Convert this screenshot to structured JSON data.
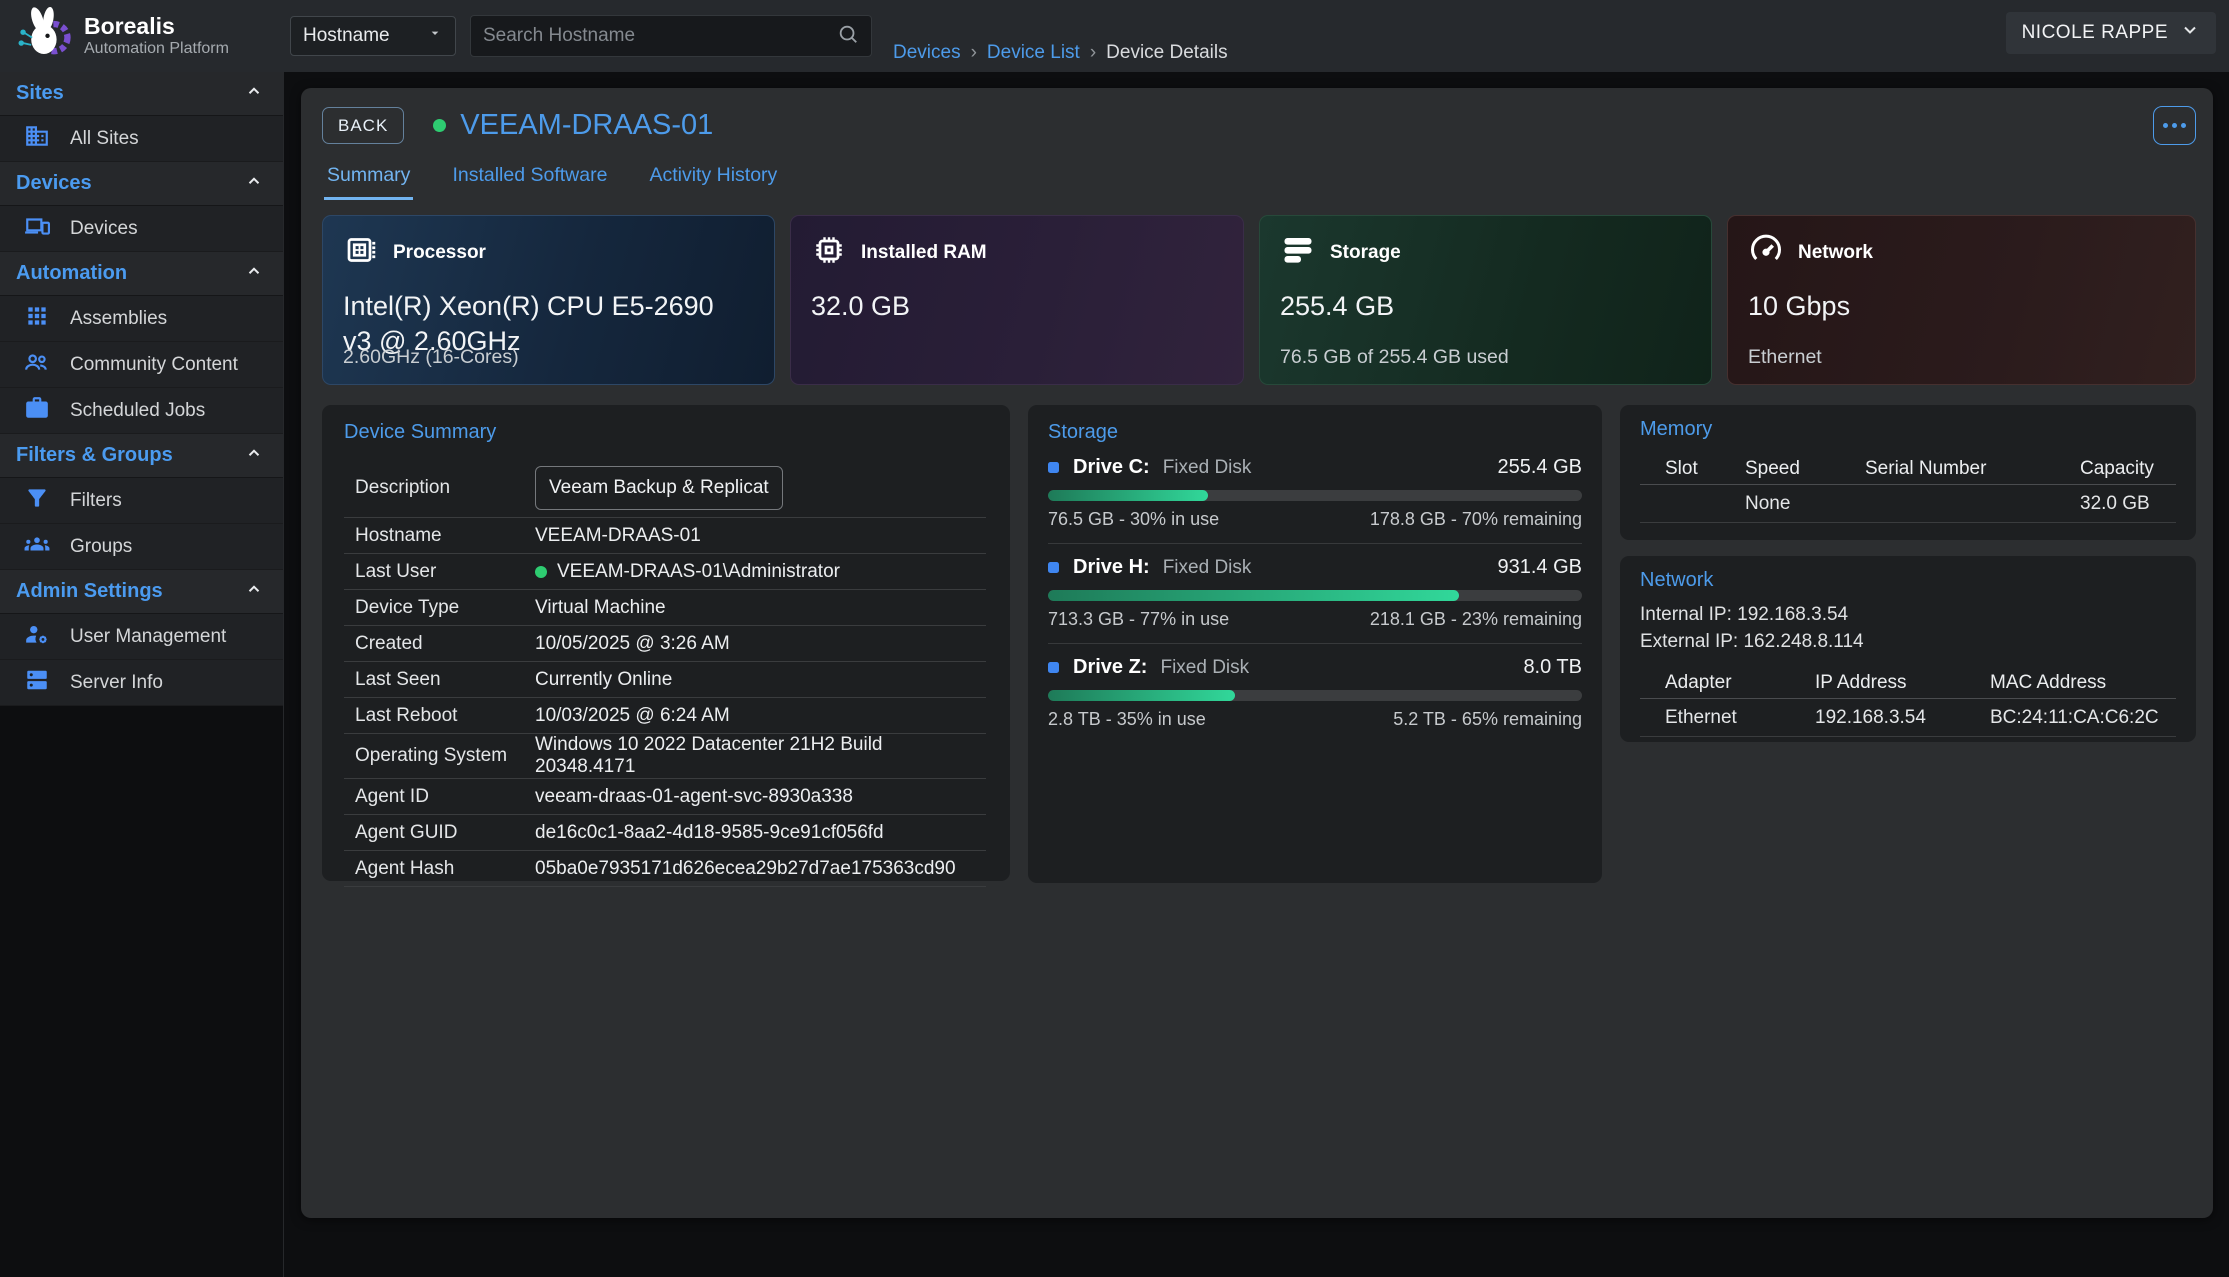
{
  "brand": {
    "name": "Borealis",
    "subtitle": "Automation Platform"
  },
  "topbar": {
    "filter_dropdown": {
      "value": "Hostname"
    },
    "search": {
      "placeholder": "Search Hostname"
    },
    "breadcrumb": {
      "separator": "›",
      "items": [
        {
          "label": "Devices"
        },
        {
          "label": "Device List"
        },
        {
          "label": "Device Details"
        }
      ]
    },
    "user_menu": {
      "label": "NICOLE RAPPE"
    }
  },
  "sidebar": {
    "sections": [
      {
        "label": "Sites",
        "items": [
          {
            "label": "All Sites",
            "icon": "building-icon"
          }
        ]
      },
      {
        "label": "Devices",
        "items": [
          {
            "label": "Devices",
            "icon": "devices-icon"
          }
        ]
      },
      {
        "label": "Automation",
        "items": [
          {
            "label": "Assemblies",
            "icon": "grid-icon"
          },
          {
            "label": "Community Content",
            "icon": "people-icon"
          },
          {
            "label": "Scheduled Jobs",
            "icon": "briefcase-icon"
          }
        ]
      },
      {
        "label": "Filters & Groups",
        "items": [
          {
            "label": "Filters",
            "icon": "filter-icon"
          },
          {
            "label": "Groups",
            "icon": "groups-icon"
          }
        ]
      },
      {
        "label": "Admin Settings",
        "items": [
          {
            "label": "User Management",
            "icon": "user-gear-icon"
          },
          {
            "label": "Server Info",
            "icon": "server-icon"
          }
        ]
      }
    ]
  },
  "device_header": {
    "back_label": "BACK",
    "name": "VEEAM-DRAAS-01",
    "status": "online",
    "tabs": [
      {
        "label": "Summary",
        "active": true
      },
      {
        "label": "Installed Software",
        "active": false
      },
      {
        "label": "Activity History",
        "active": false
      }
    ]
  },
  "stat_cards": [
    {
      "label": "Processor",
      "value": "Intel(R) Xeon(R) CPU E5-2690 v3 @ 2.60GHz",
      "subtext": "2.60GHz (16-Cores)",
      "icon": "cpu-icon"
    },
    {
      "label": "Installed RAM",
      "value": "32.0 GB",
      "subtext": "",
      "icon": "ram-chip-icon"
    },
    {
      "label": "Storage",
      "value": "255.4 GB",
      "subtext": "76.5 GB of 255.4 GB used",
      "icon": "storage-stack-icon"
    },
    {
      "label": "Network",
      "value": "10 Gbps",
      "subtext": "Ethernet",
      "icon": "speedometer-icon"
    }
  ],
  "device_summary": {
    "title": "Device Summary",
    "rows": [
      {
        "label": "Description",
        "value": "Veeam Backup & Replication"
      },
      {
        "label": "Hostname",
        "value": "VEEAM-DRAAS-01"
      },
      {
        "label": "Last User",
        "value": "VEEAM-DRAAS-01\\Administrator",
        "online_dot": true
      },
      {
        "label": "Device Type",
        "value": "Virtual Machine"
      },
      {
        "label": "Created",
        "value": "10/05/2025 @ 3:26 AM"
      },
      {
        "label": "Last Seen",
        "value": "Currently Online"
      },
      {
        "label": "Last Reboot",
        "value": "10/03/2025 @ 6:24 AM"
      },
      {
        "label": "Operating System",
        "value": "Windows 10 2022 Datacenter 21H2 Build 20348.4171"
      },
      {
        "label": "Agent ID",
        "value": "veeam-draas-01-agent-svc-8930a338"
      },
      {
        "label": "Agent GUID",
        "value": "de16c0c1-8aa2-4d18-9585-9ce91cf056fd"
      },
      {
        "label": "Agent Hash",
        "value": "05ba0e7935171d626ecea29b27d7ae175363cd90"
      }
    ]
  },
  "storage_panel": {
    "title": "Storage",
    "drives": [
      {
        "name": "Drive C:",
        "type": "Fixed Disk",
        "total": "255.4 GB",
        "used_pct": 30,
        "used_text": "76.5 GB - 30% in use",
        "remaining_text": "178.8 GB - 70% remaining"
      },
      {
        "name": "Drive H:",
        "type": "Fixed Disk",
        "total": "931.4 GB",
        "used_pct": 77,
        "used_text": "713.3 GB - 77% in use",
        "remaining_text": "218.1 GB - 23% remaining"
      },
      {
        "name": "Drive Z:",
        "type": "Fixed Disk",
        "total": "8.0 TB",
        "used_pct": 35,
        "used_text": "2.8 TB - 35% in use",
        "remaining_text": "5.2 TB - 65% remaining"
      }
    ]
  },
  "memory_panel": {
    "title": "Memory",
    "columns": [
      "Slot",
      "Speed",
      "Serial Number",
      "Capacity"
    ],
    "rows": [
      {
        "slot": "",
        "speed": "None",
        "serial": "",
        "capacity": "32.0 GB"
      }
    ]
  },
  "network_panel": {
    "title": "Network",
    "internal_ip": "Internal IP: 192.168.3.54",
    "external_ip": "External IP: 162.248.8.114",
    "columns": [
      "Adapter",
      "IP Address",
      "MAC Address"
    ],
    "rows": [
      {
        "adapter": "Ethernet",
        "ip": "192.168.3.54",
        "mac": "BC:24:11:CA:C6:2C"
      }
    ]
  },
  "colors": {
    "accent_blue": "#4d9bea",
    "sidebar_icon_blue": "#4b8ff5",
    "online_green": "#2ecc71",
    "progress_green_start": "#1e7a58",
    "progress_green_end": "#31d89a",
    "card_processor_base": "#15273d",
    "card_ram_base": "#2a1f38",
    "card_storage_base": "#142a20",
    "card_network_base": "#2b1b1c"
  }
}
